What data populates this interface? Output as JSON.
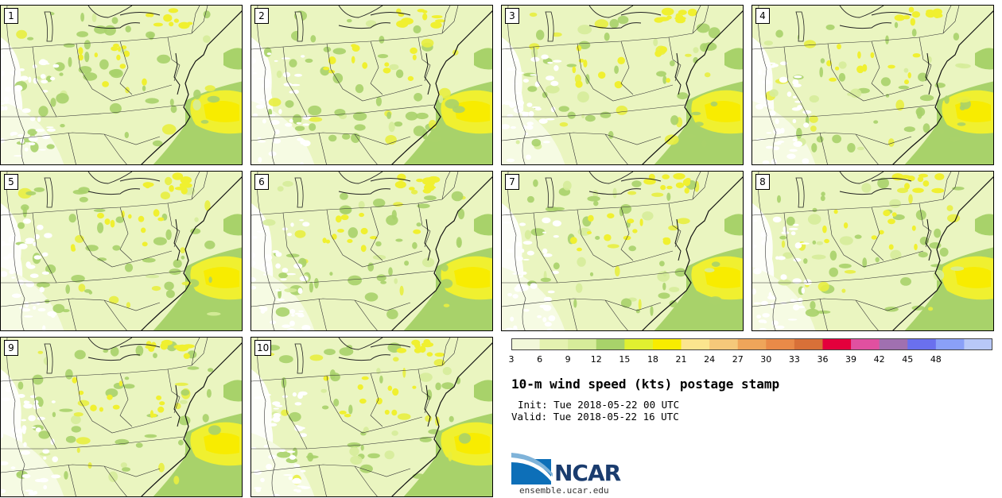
{
  "panels": [
    "1",
    "2",
    "3",
    "4",
    "5",
    "6",
    "7",
    "8",
    "9",
    "10"
  ],
  "legend": {
    "title": "10-m wind speed (kts) postage stamp",
    "ticks": [
      "3",
      "6",
      "9",
      "12",
      "15",
      "18",
      "21",
      "24",
      "27",
      "30",
      "33",
      "36",
      "39",
      "42",
      "45",
      "48"
    ],
    "colors": [
      "#f2f8d9",
      "#e4f2b0",
      "#d6ec9a",
      "#a8d26a",
      "#e0f030",
      "#f8ec00",
      "#fbe58e",
      "#f5c87a",
      "#efa55a",
      "#e98a48",
      "#d87038",
      "#e4003c",
      "#e050a0",
      "#a070b0",
      "#6a70ee",
      "#8aa0f8",
      "#b8c8f8"
    ]
  },
  "init_label": "Init: Tue 2018-05-22 00 UTC",
  "valid_label": "Valid: Tue 2018-05-22 16 UTC",
  "logo": {
    "text": "NCAR",
    "url": "ensemble.ucar.edu"
  }
}
